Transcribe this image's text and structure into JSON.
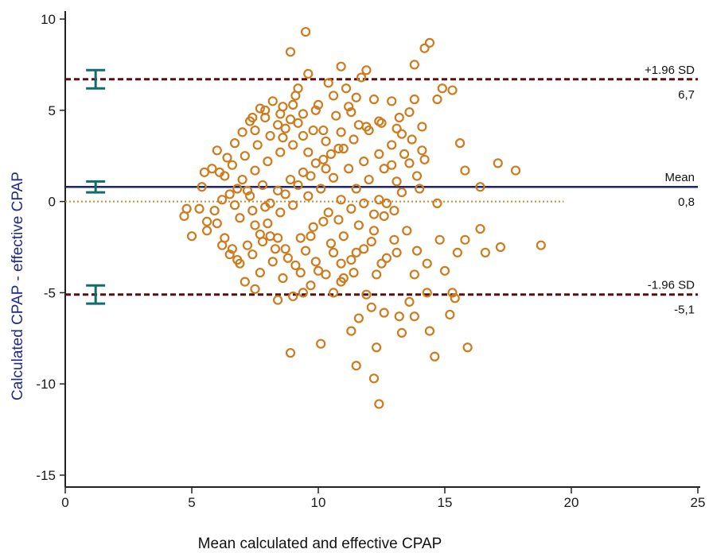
{
  "chart_data": {
    "type": "scatter",
    "xlabel": "Mean calculated and effective CPAP",
    "ylabel": "Calculated CPAP - effective CPAP",
    "xlim": [
      0,
      25
    ],
    "ylim": [
      -15,
      10
    ],
    "xticks": [
      "0",
      "5",
      "10",
      "15",
      "20",
      "25"
    ],
    "yticks": [
      "10",
      "5",
      "0",
      "-5",
      "-10",
      "-15"
    ],
    "grid": false,
    "reference_lines": [
      {
        "label": "+1.96 SD",
        "value": 6.7,
        "value_label": "6,7",
        "style": "dashed",
        "color": "#5a0f0f"
      },
      {
        "label": "Mean",
        "value": 0.8,
        "value_label": "0,8",
        "style": "solid",
        "color": "#1e2466"
      },
      {
        "label": "-1.96 SD",
        "value": -5.1,
        "value_label": "-5,1",
        "style": "dashed",
        "color": "#5a0f0f"
      }
    ],
    "zero_line": {
      "value": 0,
      "style": "dotted",
      "color": "#c98a2a",
      "x_range": [
        0,
        19.7
      ]
    },
    "confidence_intervals": [
      {
        "x": 1.2,
        "center": 6.7,
        "low": 6.2,
        "high": 7.2
      },
      {
        "x": 1.2,
        "center": 0.8,
        "low": 0.5,
        "high": 1.1
      },
      {
        "x": 1.2,
        "center": -5.1,
        "low": -5.6,
        "high": -4.6
      }
    ],
    "points": [
      [
        9.5,
        9.3
      ],
      [
        8.9,
        8.2
      ],
      [
        14.2,
        8.4
      ],
      [
        14.4,
        8.7
      ],
      [
        13.8,
        7.5
      ],
      [
        10.9,
        7.4
      ],
      [
        9.6,
        7.0
      ],
      [
        11.9,
        7.2
      ],
      [
        11.7,
        6.8
      ],
      [
        9.2,
        6.2
      ],
      [
        10.4,
        6.5
      ],
      [
        11.1,
        6.2
      ],
      [
        14.9,
        6.2
      ],
      [
        15.3,
        6.1
      ],
      [
        14.7,
        5.6
      ],
      [
        12.9,
        5.5
      ],
      [
        12.2,
        5.6
      ],
      [
        13.8,
        5.6
      ],
      [
        11.5,
        5.7
      ],
      [
        8.2,
        5.5
      ],
      [
        7.7,
        5.1
      ],
      [
        8.5,
        4.8
      ],
      [
        9.0,
        5.3
      ],
      [
        9.9,
        5.0
      ],
      [
        10.7,
        4.7
      ],
      [
        11.3,
        4.9
      ],
      [
        13.6,
        4.9
      ],
      [
        13.2,
        4.6
      ],
      [
        12.4,
        4.4
      ],
      [
        11.9,
        4.1
      ],
      [
        14.1,
        4.1
      ],
      [
        10.2,
        3.9
      ],
      [
        9.4,
        3.6
      ],
      [
        8.6,
        3.5
      ],
      [
        7.5,
        3.9
      ],
      [
        7.0,
        3.8
      ],
      [
        6.7,
        3.2
      ],
      [
        6.0,
        2.8
      ],
      [
        6.4,
        2.4
      ],
      [
        5.8,
        1.8
      ],
      [
        5.5,
        1.6
      ],
      [
        5.4,
        0.8
      ],
      [
        4.7,
        -0.8
      ],
      [
        4.8,
        -0.4
      ],
      [
        5.0,
        -1.9
      ],
      [
        5.6,
        -1.6
      ],
      [
        6.0,
        -1.2
      ],
      [
        6.3,
        -2.0
      ],
      [
        6.6,
        -2.6
      ],
      [
        6.8,
        -3.2
      ],
      [
        7.2,
        -2.4
      ],
      [
        7.7,
        -1.8
      ],
      [
        8.0,
        -1.2
      ],
      [
        8.4,
        -2.0
      ],
      [
        8.2,
        -3.3
      ],
      [
        7.7,
        -3.9
      ],
      [
        7.1,
        -4.4
      ],
      [
        7.5,
        -4.8
      ],
      [
        8.6,
        -4.2
      ],
      [
        9.1,
        -3.5
      ],
      [
        9.5,
        -2.7
      ],
      [
        9.7,
        -1.9
      ],
      [
        10.2,
        -1.1
      ],
      [
        10.5,
        -2.3
      ],
      [
        10.0,
        -3.8
      ],
      [
        9.7,
        -4.6
      ],
      [
        9.0,
        -5.2
      ],
      [
        9.4,
        -5.0
      ],
      [
        8.4,
        -5.4
      ],
      [
        10.6,
        -5.0
      ],
      [
        11.0,
        -4.2
      ],
      [
        11.3,
        -3.2
      ],
      [
        11.8,
        -2.6
      ],
      [
        12.2,
        -1.6
      ],
      [
        12.6,
        -0.8
      ],
      [
        13.0,
        -2.1
      ],
      [
        12.7,
        -3.1
      ],
      [
        12.3,
        -4.0
      ],
      [
        11.9,
        -5.1
      ],
      [
        12.1,
        -5.8
      ],
      [
        11.6,
        -6.4
      ],
      [
        11.3,
        -7.1
      ],
      [
        12.3,
        -8.0
      ],
      [
        11.5,
        -9.0
      ],
      [
        12.2,
        -9.7
      ],
      [
        12.4,
        -11.1
      ],
      [
        10.1,
        -7.8
      ],
      [
        8.9,
        -8.3
      ],
      [
        12.6,
        -6.1
      ],
      [
        13.2,
        -6.3
      ],
      [
        13.3,
        -7.2
      ],
      [
        13.8,
        -6.3
      ],
      [
        14.4,
        -7.1
      ],
      [
        14.6,
        -8.5
      ],
      [
        15.9,
        -8.0
      ],
      [
        15.2,
        -6.2
      ],
      [
        14.3,
        -5.0
      ],
      [
        13.6,
        -5.5
      ],
      [
        13.8,
        -4.0
      ],
      [
        14.3,
        -3.4
      ],
      [
        14.8,
        -2.1
      ],
      [
        15.5,
        -2.8
      ],
      [
        15.8,
        -2.1
      ],
      [
        16.4,
        -1.5
      ],
      [
        16.6,
        -2.8
      ],
      [
        17.2,
        -2.5
      ],
      [
        18.8,
        -2.4
      ],
      [
        15.0,
        -3.8
      ],
      [
        15.3,
        -5.0
      ],
      [
        15.4,
        -5.3
      ],
      [
        13.9,
        -2.7
      ],
      [
        14.7,
        -0.1
      ],
      [
        14.0,
        0.7
      ],
      [
        16.4,
        0.8
      ],
      [
        15.8,
        1.7
      ],
      [
        15.6,
        3.2
      ],
      [
        17.1,
        2.1
      ],
      [
        17.8,
        1.7
      ],
      [
        14.2,
        2.3
      ],
      [
        13.6,
        2.1
      ],
      [
        13.3,
        3.7
      ],
      [
        12.9,
        3.1
      ],
      [
        12.4,
        2.6
      ],
      [
        11.8,
        2.2
      ],
      [
        11.2,
        1.8
      ],
      [
        10.6,
        1.3
      ],
      [
        10.1,
        0.7
      ],
      [
        9.6,
        0.3
      ],
      [
        9.0,
        -0.2
      ],
      [
        8.5,
        -0.6
      ],
      [
        7.9,
        -0.3
      ],
      [
        7.3,
        0.3
      ],
      [
        6.8,
        0.7
      ],
      [
        6.3,
        1.4
      ],
      [
        6.2,
        0.1
      ],
      [
        5.9,
        -0.5
      ],
      [
        6.9,
        -0.9
      ],
      [
        7.5,
        -1.3
      ],
      [
        8.1,
        -1.9
      ],
      [
        8.7,
        -2.6
      ],
      [
        9.3,
        -2.0
      ],
      [
        9.8,
        -1.4
      ],
      [
        10.4,
        -0.6
      ],
      [
        10.9,
        0.1
      ],
      [
        11.5,
        0.7
      ],
      [
        12.0,
        1.2
      ],
      [
        12.6,
        1.8
      ],
      [
        13.1,
        1.1
      ],
      [
        12.7,
        -0.1
      ],
      [
        12.2,
        -0.7
      ],
      [
        11.6,
        -1.3
      ],
      [
        11.0,
        -1.9
      ],
      [
        10.6,
        -2.8
      ],
      [
        9.9,
        -3.3
      ],
      [
        9.3,
        -3.9
      ],
      [
        8.8,
        -3.1
      ],
      [
        8.3,
        -2.6
      ],
      [
        7.8,
        -2.2
      ],
      [
        7.4,
        -2.9
      ],
      [
        6.9,
        -3.4
      ],
      [
        6.5,
        -2.9
      ],
      [
        6.2,
        -2.4
      ],
      [
        5.6,
        -1.1
      ],
      [
        5.3,
        -0.4
      ],
      [
        6.5,
        0.4
      ],
      [
        7.0,
        1.2
      ],
      [
        7.5,
        1.7
      ],
      [
        8.0,
        2.2
      ],
      [
        8.5,
        2.7
      ],
      [
        9.0,
        3.1
      ],
      [
        9.6,
        2.7
      ],
      [
        10.2,
        2.3
      ],
      [
        10.8,
        2.9
      ],
      [
        11.4,
        3.4
      ],
      [
        12.0,
        3.9
      ],
      [
        12.5,
        4.3
      ],
      [
        11.6,
        4.2
      ],
      [
        10.9,
        3.8
      ],
      [
        10.3,
        3.3
      ],
      [
        9.8,
        3.9
      ],
      [
        9.2,
        4.3
      ],
      [
        8.7,
        4.0
      ],
      [
        8.1,
        3.6
      ],
      [
        7.6,
        3.1
      ],
      [
        7.1,
        2.5
      ],
      [
        6.6,
        2.0
      ],
      [
        6.1,
        1.6
      ],
      [
        7.3,
        4.4
      ],
      [
        7.9,
        4.6
      ],
      [
        8.4,
        4.2
      ],
      [
        8.9,
        4.5
      ],
      [
        9.4,
        4.8
      ],
      [
        10.0,
        5.3
      ],
      [
        10.6,
        5.8
      ],
      [
        11.2,
        5.2
      ],
      [
        9.1,
        5.8
      ],
      [
        8.6,
        5.2
      ],
      [
        7.9,
        5.0
      ],
      [
        7.4,
        4.6
      ],
      [
        13.1,
        4.0
      ],
      [
        13.7,
        3.4
      ],
      [
        14.1,
        2.8
      ],
      [
        13.4,
        2.6
      ],
      [
        12.9,
        2.0
      ],
      [
        13.9,
        1.4
      ],
      [
        13.3,
        0.5
      ],
      [
        12.4,
        0.1
      ],
      [
        11.8,
        -0.1
      ],
      [
        11.3,
        -0.4
      ],
      [
        10.8,
        -1.0
      ],
      [
        8.4,
        0.6
      ],
      [
        8.9,
        1.2
      ],
      [
        9.4,
        1.6
      ],
      [
        9.9,
        2.1
      ],
      [
        10.5,
        2.6
      ],
      [
        11.0,
        2.9
      ],
      [
        7.8,
        0.9
      ],
      [
        7.2,
        0.6
      ],
      [
        6.7,
        -0.2
      ],
      [
        7.4,
        -0.5
      ],
      [
        8.1,
        -0.1
      ],
      [
        8.7,
        0.4
      ],
      [
        9.2,
        0.9
      ],
      [
        9.7,
        1.4
      ],
      [
        10.3,
        1.8
      ],
      [
        12.1,
        -2.2
      ],
      [
        11.5,
        -2.8
      ],
      [
        10.9,
        -3.4
      ],
      [
        10.3,
        -4.0
      ],
      [
        10.9,
        -4.4
      ],
      [
        11.4,
        -3.9
      ],
      [
        12.5,
        -3.4
      ],
      [
        13.1,
        -2.8
      ],
      [
        13.5,
        -1.6
      ],
      [
        13.0,
        -0.5
      ]
    ]
  }
}
